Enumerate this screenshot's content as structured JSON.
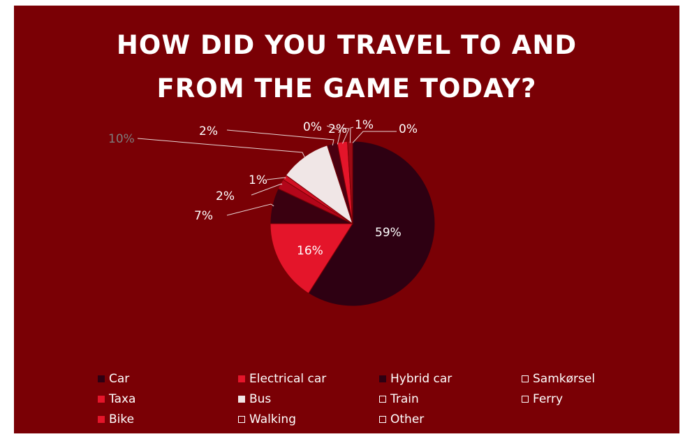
{
  "title_lines": [
    "HOW DID YOU TRAVEL TO AND",
    "FROM THE GAME TODAY?"
  ],
  "chart_data": {
    "type": "pie",
    "title": "HOW DID YOU TRAVEL TO AND FROM THE GAME TODAY?",
    "unit": "%",
    "legend_position": "bottom",
    "slices": [
      {
        "label": "Car",
        "value": 59,
        "display": "59%",
        "color": "#2e0012"
      },
      {
        "label": "Electrical car",
        "value": 16,
        "display": "16%",
        "color": "#e4152a"
      },
      {
        "label": "Hybrid car",
        "value": 7,
        "display": "7%",
        "color": "#3a0010"
      },
      {
        "label": "Samkørsel",
        "value": 2,
        "display": "2%",
        "color": "#b3061a"
      },
      {
        "label": "Taxa",
        "value": 1,
        "display": "1%",
        "color": "#d10f22"
      },
      {
        "label": "Bus",
        "value": 10,
        "display": "10%",
        "color": "#f0e6e6"
      },
      {
        "label": "Train",
        "value": 2,
        "display": "2%",
        "color": "#4a0010"
      },
      {
        "label": "Ferry",
        "value": 0,
        "display": "0%",
        "color": "#ec1c2c"
      },
      {
        "label": "Bike",
        "value": 2,
        "display": "2%",
        "color": "#e4152a"
      },
      {
        "label": "Walking",
        "value": 1,
        "display": "1%",
        "color": "#9b0a14"
      },
      {
        "label": "Other",
        "value": 0,
        "display": "0%",
        "color": "#7a0005"
      }
    ]
  },
  "legend": [
    {
      "label": "Car",
      "swatch": "#2e0012",
      "outline": false
    },
    {
      "label": "Electrical car",
      "swatch": "#e4152a",
      "outline": false
    },
    {
      "label": "Hybrid car",
      "swatch": "#2e0012",
      "outline": false
    },
    {
      "label": "Samkørsel",
      "swatch": "",
      "outline": true
    },
    {
      "label": "Taxa",
      "swatch": "#e4152a",
      "outline": false
    },
    {
      "label": "Bus",
      "swatch": "#f0e6e6",
      "outline": false
    },
    {
      "label": "Train",
      "swatch": "",
      "outline": true
    },
    {
      "label": "Ferry",
      "swatch": "",
      "outline": true
    },
    {
      "label": "Bike",
      "swatch": "#e4152a",
      "outline": false
    },
    {
      "label": "Walking",
      "swatch": "",
      "outline": true
    },
    {
      "label": "Other",
      "swatch": "",
      "outline": true
    }
  ]
}
